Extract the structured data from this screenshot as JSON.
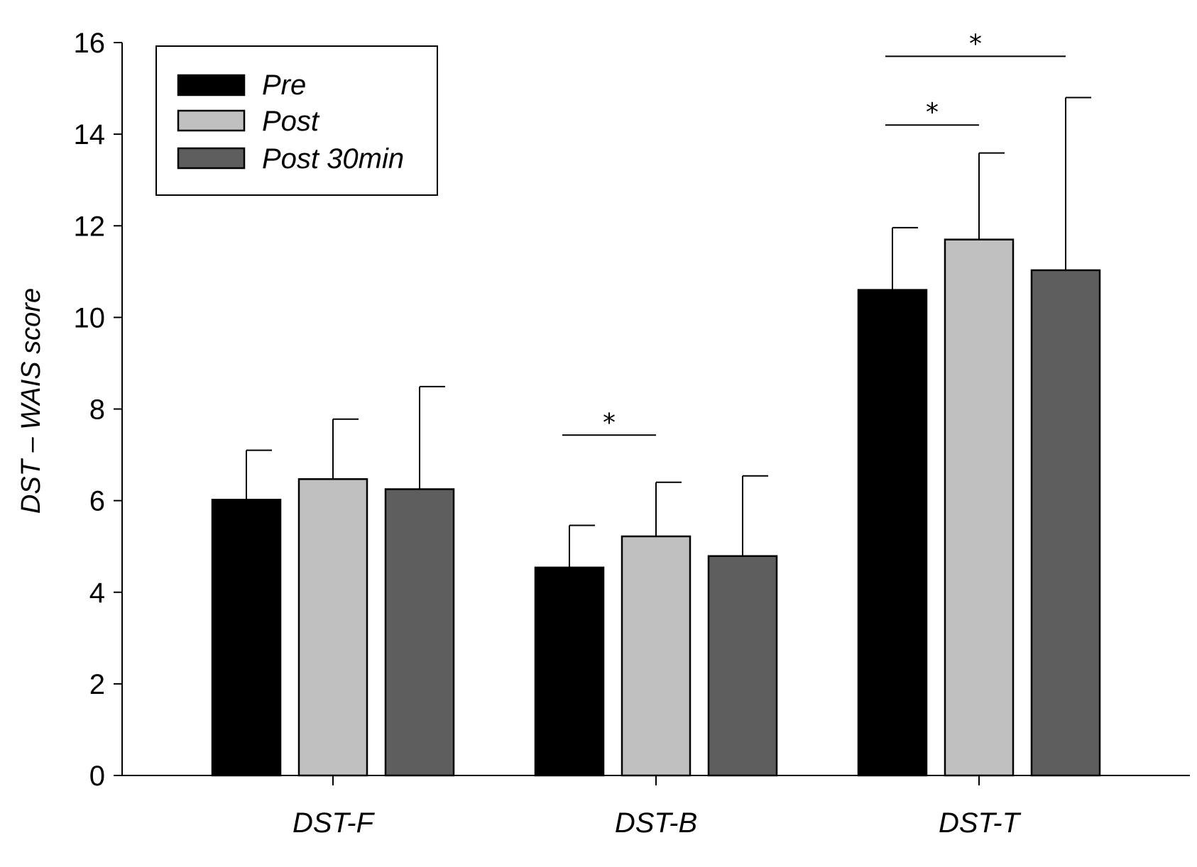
{
  "chart_data": {
    "type": "bar",
    "title": "",
    "xlabel": "",
    "ylabel": "DST – WAIS score",
    "ylim": [
      0,
      16
    ],
    "yticks": [
      0,
      2,
      4,
      6,
      8,
      10,
      12,
      14,
      16
    ],
    "ytick_labels": [
      "0",
      "2",
      "4",
      "6",
      "8",
      "10",
      "12",
      "14",
      "16"
    ],
    "categories": [
      "DST-F",
      "DST-B",
      "DST-T"
    ],
    "series": [
      {
        "name": "Pre",
        "color": "#000000",
        "values": [
          6.02,
          4.54,
          10.6
        ],
        "errors": [
          1.08,
          0.92,
          1.36
        ]
      },
      {
        "name": "Post",
        "color": "#c0c0c0",
        "values": [
          6.47,
          5.22,
          11.7
        ],
        "errors": [
          1.31,
          1.18,
          1.89
        ]
      },
      {
        "name": "Post 30min",
        "color": "#5e5e5e",
        "values": [
          6.25,
          4.79,
          11.03
        ],
        "errors": [
          2.24,
          1.75,
          3.77
        ]
      }
    ],
    "legend": {
      "position": "top-left"
    },
    "significance": [
      {
        "category": "DST-B",
        "from_series": 0,
        "to_series": 1,
        "level": 7.43,
        "label": "*"
      },
      {
        "category": "DST-T",
        "from_series": 0,
        "to_series": 1,
        "level": 14.2,
        "label": "*"
      },
      {
        "category": "DST-T",
        "from_series": 0,
        "to_series": 2,
        "level": 15.7,
        "label": "*"
      }
    ]
  }
}
